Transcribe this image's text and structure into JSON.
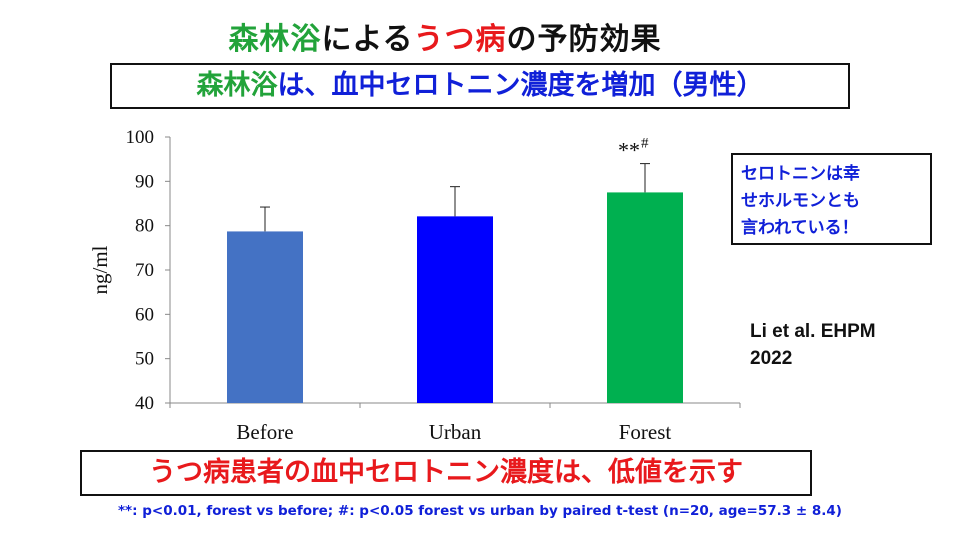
{
  "title": {
    "part1": "森林浴",
    "part2": "による",
    "part3": "うつ病",
    "part4": "の予防効果"
  },
  "subtitle": {
    "part1": "森林浴",
    "part2": "は、血中セロトニン濃度を増加（男性）"
  },
  "note": {
    "lines": [
      "セロトニンは幸",
      "せホルモンとも",
      "言われている！"
    ]
  },
  "citation": {
    "lines": [
      "Li et al. EHPM",
      "2022"
    ]
  },
  "bottom_banner": "うつ病患者の血中セロトニン濃度は、低値を示す",
  "footnote": "**: p<0.01, forest vs before; #: p<0.05 forest vs urban by paired t-test (n=20, age=57.3 ± 8.4)",
  "chart_data": {
    "type": "bar",
    "categories": [
      "Before",
      "Urban",
      "Forest"
    ],
    "values": [
      78.7,
      82.1,
      87.5
    ],
    "errors": [
      5.5,
      6.7,
      6.5
    ],
    "colors": [
      "#4472c4",
      "#0000ff",
      "#00b050"
    ],
    "ylabel": "ng/ml",
    "xlabel": "",
    "ylim": [
      40,
      100
    ],
    "yticks": [
      40,
      50,
      60,
      70,
      80,
      90,
      100
    ],
    "grid": false,
    "annotations": [
      {
        "category": "Forest",
        "stars": "**",
        "hash": "#"
      }
    ]
  }
}
